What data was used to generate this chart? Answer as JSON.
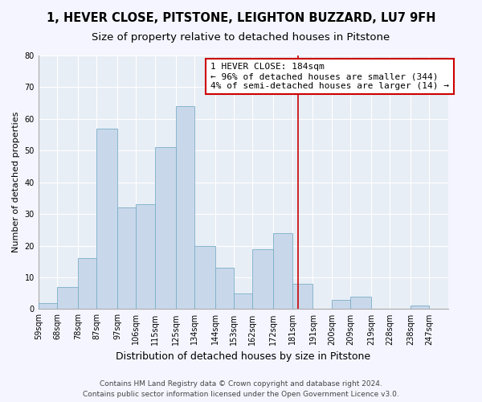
{
  "title": "1, HEVER CLOSE, PITSTONE, LEIGHTON BUZZARD, LU7 9FH",
  "subtitle": "Size of property relative to detached houses in Pitstone",
  "xlabel": "Distribution of detached houses by size in Pitstone",
  "ylabel": "Number of detached properties",
  "bin_labels": [
    "59sqm",
    "68sqm",
    "78sqm",
    "87sqm",
    "97sqm",
    "106sqm",
    "115sqm",
    "125sqm",
    "134sqm",
    "144sqm",
    "153sqm",
    "162sqm",
    "172sqm",
    "181sqm",
    "191sqm",
    "200sqm",
    "209sqm",
    "219sqm",
    "228sqm",
    "238sqm",
    "247sqm"
  ],
  "bin_edges": [
    59,
    68,
    78,
    87,
    97,
    106,
    115,
    125,
    134,
    144,
    153,
    162,
    172,
    181,
    191,
    200,
    209,
    219,
    228,
    238,
    247
  ],
  "bar_heights": [
    2,
    7,
    16,
    57,
    32,
    33,
    51,
    64,
    20,
    13,
    5,
    19,
    24,
    8,
    0,
    3,
    4,
    0,
    0,
    1
  ],
  "bar_color": "#c8d8ea",
  "bar_edge_color": "#7aaec8",
  "vline_x": 184,
  "vline_color": "#cc0000",
  "annotation_title": "1 HEVER CLOSE: 184sqm",
  "annotation_line1": "← 96% of detached houses are smaller (344)",
  "annotation_line2": "4% of semi-detached houses are larger (14) →",
  "annotation_box_facecolor": "#ffffff",
  "annotation_box_edgecolor": "#cc0000",
  "ylim": [
    0,
    80
  ],
  "yticks": [
    0,
    10,
    20,
    30,
    40,
    50,
    60,
    70,
    80
  ],
  "bg_color": "#e8eef5",
  "fig_bg_color": "#f5f5ff",
  "footer_line1": "Contains HM Land Registry data © Crown copyright and database right 2024.",
  "footer_line2": "Contains public sector information licensed under the Open Government Licence v3.0.",
  "title_fontsize": 10.5,
  "subtitle_fontsize": 9.5,
  "xlabel_fontsize": 9,
  "ylabel_fontsize": 8,
  "tick_fontsize": 7,
  "annotation_fontsize": 8,
  "footer_fontsize": 6.5
}
